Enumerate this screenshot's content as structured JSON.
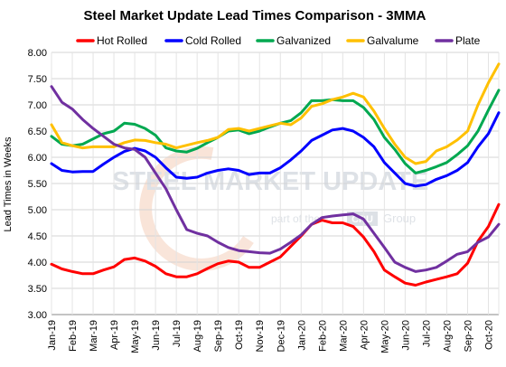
{
  "chart_data": {
    "type": "line",
    "title": "Steel Market Update Lead Times Comparison - 3MMA",
    "xlabel": "",
    "ylabel": "Lead Times in Weeks",
    "ylim": [
      3.0,
      8.0
    ],
    "yticks": [
      "3.00",
      "3.50",
      "4.00",
      "4.50",
      "5.00",
      "5.50",
      "6.00",
      "6.50",
      "7.00",
      "7.50",
      "8.00"
    ],
    "grid": true,
    "legend_position": "top",
    "x": [
      "Jan-19",
      "",
      "Feb-19",
      "",
      "Mar-19",
      "",
      "Apr-19",
      "",
      "May-19",
      "",
      "Jun-19",
      "",
      "Jul-19",
      "",
      "Aug-19",
      "",
      "Sep-19",
      "",
      "Oct-19",
      "",
      "Nov-19",
      "",
      "Dec-19",
      "",
      "Jan-20",
      "",
      "Feb-20",
      "",
      "Mar-20",
      "",
      "Apr-20",
      "",
      "May-20",
      "",
      "Jun-20",
      "",
      "Jul-20",
      "",
      "Aug-20",
      "",
      "Sep-20",
      "",
      "Oct-20",
      ""
    ],
    "x_tick_labels": [
      "Jan-19",
      "Feb-19",
      "Mar-19",
      "Apr-19",
      "May-19",
      "Jun-19",
      "Jul-19",
      "Aug-19",
      "Sep-19",
      "Oct-19",
      "Nov-19",
      "Dec-19",
      "Jan-20",
      "Feb-20",
      "Mar-20",
      "Apr-20",
      "May-20",
      "Jun-20",
      "Jul-20",
      "Aug-20",
      "Sep-20",
      "Oct-20"
    ],
    "series": [
      {
        "name": "Hot Rolled",
        "color": "#ff0000",
        "values": [
          3.96,
          3.87,
          3.82,
          3.78,
          3.78,
          3.85,
          3.91,
          4.05,
          4.08,
          4.02,
          3.92,
          3.78,
          3.72,
          3.72,
          3.78,
          3.88,
          3.97,
          4.02,
          4.0,
          3.9,
          3.9,
          4.0,
          4.1,
          4.3,
          4.5,
          4.72,
          4.8,
          4.75,
          4.75,
          4.68,
          4.48,
          4.2,
          3.85,
          3.72,
          3.6,
          3.56,
          3.62,
          3.67,
          3.72,
          3.78,
          3.98,
          4.4,
          4.68,
          5.1
        ]
      },
      {
        "name": "Cold Rolled",
        "color": "#0000ff",
        "values": [
          5.88,
          5.75,
          5.72,
          5.73,
          5.73,
          5.87,
          6.0,
          6.11,
          6.17,
          6.12,
          6.0,
          5.8,
          5.62,
          5.6,
          5.62,
          5.7,
          5.75,
          5.78,
          5.75,
          5.67,
          5.7,
          5.7,
          5.8,
          5.95,
          6.12,
          6.32,
          6.42,
          6.52,
          6.55,
          6.5,
          6.38,
          6.2,
          5.9,
          5.7,
          5.5,
          5.45,
          5.48,
          5.58,
          5.65,
          5.75,
          5.9,
          6.2,
          6.45,
          6.85
        ]
      },
      {
        "name": "Galvanized",
        "color": "#00a850",
        "values": [
          6.4,
          6.25,
          6.22,
          6.25,
          6.35,
          6.45,
          6.5,
          6.65,
          6.63,
          6.55,
          6.42,
          6.18,
          6.12,
          6.1,
          6.17,
          6.28,
          6.38,
          6.5,
          6.52,
          6.45,
          6.5,
          6.58,
          6.65,
          6.7,
          6.85,
          7.08,
          7.08,
          7.1,
          7.08,
          7.08,
          6.95,
          6.72,
          6.38,
          6.15,
          5.88,
          5.7,
          5.75,
          5.82,
          5.9,
          6.05,
          6.22,
          6.5,
          6.9,
          7.28
        ]
      },
      {
        "name": "Galvalume",
        "color": "#ffc000",
        "values": [
          6.62,
          6.28,
          6.22,
          6.18,
          6.2,
          6.2,
          6.2,
          6.28,
          6.33,
          6.32,
          6.28,
          6.25,
          6.18,
          6.23,
          6.28,
          6.32,
          6.38,
          6.53,
          6.55,
          6.5,
          6.55,
          6.6,
          6.65,
          6.62,
          6.75,
          6.97,
          7.02,
          7.1,
          7.15,
          7.22,
          7.15,
          6.88,
          6.55,
          6.25,
          6.0,
          5.88,
          5.92,
          6.12,
          6.2,
          6.33,
          6.5,
          7.0,
          7.42,
          7.78
        ]
      },
      {
        "name": "Plate",
        "color": "#7030a0",
        "values": [
          7.35,
          7.05,
          6.92,
          6.72,
          6.55,
          6.4,
          6.25,
          6.18,
          6.15,
          6.0,
          5.7,
          5.4,
          5.0,
          4.62,
          4.55,
          4.5,
          4.38,
          4.28,
          4.22,
          4.2,
          4.18,
          4.17,
          4.25,
          4.38,
          4.52,
          4.72,
          4.85,
          4.88,
          4.9,
          4.92,
          4.82,
          4.55,
          4.28,
          4.0,
          3.9,
          3.82,
          3.85,
          3.9,
          4.02,
          4.15,
          4.2,
          4.38,
          4.48,
          4.72
        ]
      }
    ]
  },
  "watermark": {
    "brand": "STEEL MARKET UPDATE",
    "partner_prefix": "part of the",
    "partner_logo": "CRU",
    "partner_suffix": "Group"
  }
}
